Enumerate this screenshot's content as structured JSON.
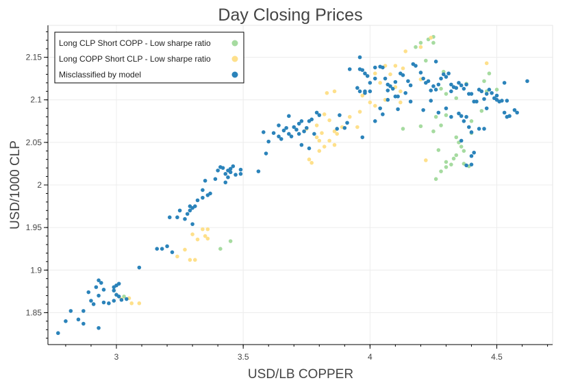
{
  "chart_data": {
    "type": "scatter",
    "title": "Day Closing Prices",
    "xlabel": "USD/LB COPPER",
    "ylabel": "USD/1000 CLP",
    "xlim": [
      2.73,
      4.72
    ],
    "ylim": [
      1.8125,
      2.1875
    ],
    "xticks": [
      "3",
      "3.5",
      "4",
      "4.5"
    ],
    "xtick_values": [
      3,
      3.5,
      4,
      4.5
    ],
    "yticks": [
      "1.85",
      "1.9",
      "1.95",
      "2",
      "2.05",
      "2.1",
      "2.15"
    ],
    "ytick_values": [
      1.85,
      1.9,
      1.95,
      2,
      2.05,
      2.1,
      2.15
    ],
    "grid": true,
    "legend_position": "top-left",
    "series": [
      {
        "name": "Long CLP Short COPP - Low sharpe ratio",
        "color": "#a6dba0",
        "points": [
          [
            4.23,
            2.171
          ],
          [
            4.25,
            2.174
          ],
          [
            4.18,
            2.162
          ],
          [
            4.2,
            2.167
          ],
          [
            4.25,
            2.167
          ],
          [
            4.22,
            2.146
          ],
          [
            4.29,
            2.133
          ],
          [
            4.28,
            2.113
          ],
          [
            4.3,
            2.107
          ],
          [
            4.34,
            2.102
          ],
          [
            4.38,
            2.119
          ],
          [
            4.45,
            2.122
          ],
          [
            4.47,
            2.131
          ],
          [
            4.46,
            2.11
          ],
          [
            4.5,
            2.112
          ],
          [
            4.26,
            2.08
          ],
          [
            4.28,
            2.07
          ],
          [
            4.3,
            2.082
          ],
          [
            4.13,
            2.066
          ],
          [
            4.2,
            2.069
          ],
          [
            4.25,
            2.063
          ],
          [
            4.4,
            2.075
          ],
          [
            4.4,
            2.061
          ],
          [
            4.44,
            2.087
          ],
          [
            4.34,
            2.056
          ],
          [
            4.35,
            2.05
          ],
          [
            4.36,
            2.045
          ],
          [
            4.37,
            2.04
          ],
          [
            4.33,
            2.031
          ],
          [
            4.3,
            2.027
          ],
          [
            4.27,
            2.041
          ],
          [
            4.28,
            2.016
          ],
          [
            4.26,
            2.007
          ],
          [
            4.3,
            2.021
          ],
          [
            4.32,
            2.024
          ],
          [
            4.34,
            2.035
          ],
          [
            4.37,
            2.025
          ],
          [
            4.39,
            2.022
          ],
          [
            3.45,
            1.934
          ],
          [
            3.41,
            1.925
          ],
          [
            3.03,
            1.869
          ]
        ]
      },
      {
        "name": "Long COPP Short CLP - Low sharpe ratio",
        "color": "#fee08b",
        "points": [
          [
            4.24,
            2.173
          ],
          [
            4.2,
            2.162
          ],
          [
            4.14,
            2.157
          ],
          [
            4.1,
            2.14
          ],
          [
            4.06,
            2.14
          ],
          [
            4.13,
            2.137
          ],
          [
            4.02,
            2.131
          ],
          [
            4.08,
            2.13
          ],
          [
            4.04,
            2.12
          ],
          [
            4.1,
            2.115
          ],
          [
            4.12,
            2.11
          ],
          [
            4.06,
            2.1
          ],
          [
            4.02,
            2.093
          ],
          [
            4.0,
            2.097
          ],
          [
            4.12,
            2.097
          ],
          [
            4.46,
            2.143
          ],
          [
            4.22,
            2.029
          ],
          [
            3.96,
            2.086
          ],
          [
            3.92,
            2.08
          ],
          [
            3.95,
            2.068
          ],
          [
            3.89,
            2.068
          ],
          [
            3.86,
            2.063
          ],
          [
            3.87,
            2.06
          ],
          [
            3.82,
            2.083
          ],
          [
            3.79,
            2.07
          ],
          [
            3.84,
            2.076
          ],
          [
            3.81,
            2.061
          ],
          [
            3.84,
            2.052
          ],
          [
            3.86,
            2.047
          ],
          [
            3.82,
            2.045
          ],
          [
            3.76,
            2.03
          ],
          [
            3.77,
            2.026
          ],
          [
            3.8,
            2.04
          ],
          [
            3.8,
            2.052
          ],
          [
            3.79,
            2.056
          ],
          [
            3.75,
            2.066
          ],
          [
            3.83,
            2.108
          ],
          [
            3.86,
            2.11
          ],
          [
            3.97,
            2.105
          ],
          [
            4.2,
            2.124
          ],
          [
            3.34,
            1.948
          ],
          [
            3.36,
            1.948
          ],
          [
            3.35,
            1.94
          ],
          [
            3.36,
            1.937
          ],
          [
            3.3,
            1.942
          ],
          [
            3.32,
            1.936
          ],
          [
            3.29,
            1.912
          ],
          [
            3.31,
            1.912
          ],
          [
            3.24,
            1.916
          ],
          [
            3.27,
            1.924
          ],
          [
            3.02,
            1.866
          ],
          [
            3.05,
            1.867
          ],
          [
            3.06,
            1.861
          ],
          [
            3.09,
            1.861
          ],
          [
            3.0,
            1.871
          ]
        ]
      },
      {
        "name": "Misclassified by model",
        "color": "#2b83ba",
        "points": [
          [
            2.77,
            1.826
          ],
          [
            2.8,
            1.84
          ],
          [
            2.82,
            1.852
          ],
          [
            2.85,
            1.842
          ],
          [
            2.87,
            1.852
          ],
          [
            2.87,
            1.837
          ],
          [
            2.89,
            1.874
          ],
          [
            2.9,
            1.864
          ],
          [
            2.91,
            1.86
          ],
          [
            2.92,
            1.88
          ],
          [
            2.93,
            1.888
          ],
          [
            2.94,
            1.885
          ],
          [
            2.95,
            1.877
          ],
          [
            2.93,
            1.87
          ],
          [
            2.95,
            1.862
          ],
          [
            2.97,
            1.861
          ],
          [
            2.99,
            1.876
          ],
          [
            2.99,
            1.88
          ],
          [
            3.0,
            1.882
          ],
          [
            3.01,
            1.884
          ],
          [
            3.0,
            1.871
          ],
          [
            3.01,
            1.869
          ],
          [
            3.02,
            1.865
          ],
          [
            2.99,
            1.864
          ],
          [
            2.93,
            1.832
          ],
          [
            3.04,
            1.866
          ],
          [
            3.09,
            1.903
          ],
          [
            3.16,
            1.925
          ],
          [
            3.18,
            1.925
          ],
          [
            3.2,
            1.928
          ],
          [
            3.22,
            1.921
          ],
          [
            3.21,
            1.962
          ],
          [
            3.24,
            1.962
          ],
          [
            3.25,
            1.97
          ],
          [
            3.27,
            1.96
          ],
          [
            3.28,
            1.966
          ],
          [
            3.29,
            1.97
          ],
          [
            3.29,
            1.975
          ],
          [
            3.3,
            1.973
          ],
          [
            3.31,
            1.975
          ],
          [
            3.3,
            1.954
          ],
          [
            3.32,
            1.982
          ],
          [
            3.34,
            1.985
          ],
          [
            3.34,
            1.994
          ],
          [
            3.35,
            2.005
          ],
          [
            3.36,
            1.988
          ],
          [
            3.37,
            1.99
          ],
          [
            3.39,
            2.007
          ],
          [
            3.4,
            2.017
          ],
          [
            3.41,
            2.021
          ],
          [
            3.42,
            2.02
          ],
          [
            3.43,
            2.013
          ],
          [
            3.44,
            2.017
          ],
          [
            3.44,
            2.009
          ],
          [
            3.45,
            2.015
          ],
          [
            3.46,
            2.022
          ],
          [
            3.47,
            2.012
          ],
          [
            3.49,
            2.013
          ],
          [
            3.45,
            2.019
          ],
          [
            3.43,
            2.003
          ],
          [
            3.49,
            2.018
          ],
          [
            3.56,
            2.016
          ],
          [
            3.59,
            2.037
          ],
          [
            3.6,
            2.051
          ],
          [
            3.62,
            2.061
          ],
          [
            3.64,
            2.057
          ],
          [
            3.65,
            2.054
          ],
          [
            3.66,
            2.064
          ],
          [
            3.67,
            2.067
          ],
          [
            3.68,
            2.06
          ],
          [
            3.69,
            2.057
          ],
          [
            3.7,
            2.068
          ],
          [
            3.71,
            2.065
          ],
          [
            3.72,
            2.072
          ],
          [
            3.73,
            2.075
          ],
          [
            3.74,
            2.063
          ],
          [
            3.75,
            2.067
          ],
          [
            3.76,
            2.075
          ],
          [
            3.77,
            2.077
          ],
          [
            3.78,
            2.06
          ],
          [
            3.73,
            2.047
          ],
          [
            3.76,
            2.043
          ],
          [
            3.79,
            2.085
          ],
          [
            3.8,
            2.082
          ],
          [
            3.72,
            2.06
          ],
          [
            3.68,
            2.081
          ],
          [
            3.64,
            2.07
          ],
          [
            3.58,
            2.062
          ],
          [
            3.87,
            2.066
          ],
          [
            3.9,
            2.067
          ],
          [
            3.97,
            2.056
          ],
          [
            3.88,
            2.082
          ],
          [
            3.91,
            2.073
          ],
          [
            3.92,
            2.136
          ],
          [
            3.96,
            2.136
          ],
          [
            3.97,
            2.135
          ],
          [
            3.98,
            2.131
          ],
          [
            3.99,
            2.128
          ],
          [
            4.0,
            2.12
          ],
          [
            4.0,
            2.11
          ],
          [
            3.98,
            2.11
          ],
          [
            4.02,
            2.138
          ],
          [
            4.04,
            2.139
          ],
          [
            4.05,
            2.138
          ],
          [
            4.06,
            2.125
          ],
          [
            4.07,
            2.118
          ],
          [
            4.08,
            2.116
          ],
          [
            4.09,
            2.113
          ],
          [
            4.1,
            2.121
          ],
          [
            4.1,
            2.104
          ],
          [
            4.11,
            2.104
          ],
          [
            4.12,
            2.131
          ],
          [
            4.13,
            2.129
          ],
          [
            4.15,
            2.122
          ],
          [
            4.16,
            2.117
          ],
          [
            4.17,
            2.142
          ],
          [
            4.18,
            2.14
          ],
          [
            4.2,
            2.132
          ],
          [
            4.21,
            2.125
          ],
          [
            4.22,
            2.12
          ],
          [
            4.23,
            2.122
          ],
          [
            4.24,
            2.111
          ],
          [
            4.25,
            2.116
          ],
          [
            4.26,
            2.145
          ],
          [
            4.26,
            2.112
          ],
          [
            4.27,
            2.118
          ],
          [
            4.28,
            2.125
          ],
          [
            4.29,
            2.13
          ],
          [
            4.3,
            2.127
          ],
          [
            4.31,
            2.131
          ],
          [
            4.32,
            2.118
          ],
          [
            4.33,
            2.115
          ],
          [
            4.34,
            2.114
          ],
          [
            4.35,
            2.12
          ],
          [
            4.36,
            2.117
          ],
          [
            4.37,
            2.113
          ],
          [
            4.38,
            2.118
          ],
          [
            4.39,
            2.107
          ],
          [
            4.4,
            2.107
          ],
          [
            4.41,
            2.098
          ],
          [
            4.42,
            2.098
          ],
          [
            4.43,
            2.112
          ],
          [
            4.44,
            2.11
          ],
          [
            4.45,
            2.101
          ],
          [
            4.46,
            2.107
          ],
          [
            4.47,
            2.112
          ],
          [
            4.48,
            2.108
          ],
          [
            4.49,
            2.102
          ],
          [
            4.5,
            2.105
          ],
          [
            4.51,
            2.098
          ],
          [
            4.52,
            2.099
          ],
          [
            4.53,
            2.12
          ],
          [
            4.54,
            2.099
          ],
          [
            4.53,
            2.085
          ],
          [
            4.54,
            2.08
          ],
          [
            4.55,
            2.081
          ],
          [
            4.57,
            2.088
          ],
          [
            4.58,
            2.085
          ],
          [
            4.62,
            2.122
          ],
          [
            4.21,
            2.088
          ],
          [
            4.24,
            2.099
          ],
          [
            4.27,
            2.085
          ],
          [
            4.32,
            2.08
          ],
          [
            4.36,
            2.081
          ],
          [
            4.37,
            2.075
          ],
          [
            4.38,
            2.08
          ],
          [
            4.39,
            2.068
          ],
          [
            4.4,
            2.062
          ],
          [
            4.43,
            2.066
          ],
          [
            4.41,
            2.038
          ],
          [
            4.4,
            2.034
          ],
          [
            4.4,
            2.024
          ],
          [
            4.38,
            2.023
          ],
          [
            4.36,
            2.052
          ],
          [
            4.3,
            2.09
          ],
          [
            4.32,
            2.11
          ],
          [
            4.35,
            2.084
          ],
          [
            4.14,
            2.108
          ],
          [
            4.07,
            2.111
          ],
          [
            4.04,
            2.09
          ],
          [
            4.05,
            2.083
          ],
          [
            3.95,
            2.114
          ],
          [
            3.96,
            2.11
          ],
          [
            3.98,
            2.108
          ],
          [
            4.02,
            2.125
          ],
          [
            4.16,
            2.098
          ],
          [
            4.46,
            2.09
          ],
          [
            4.5,
            2.1
          ],
          [
            4.45,
            2.066
          ],
          [
            4.02,
            2.075
          ],
          [
            4.07,
            2.1
          ],
          [
            4.11,
            2.089
          ],
          [
            3.96,
            2.15
          ]
        ]
      }
    ]
  }
}
